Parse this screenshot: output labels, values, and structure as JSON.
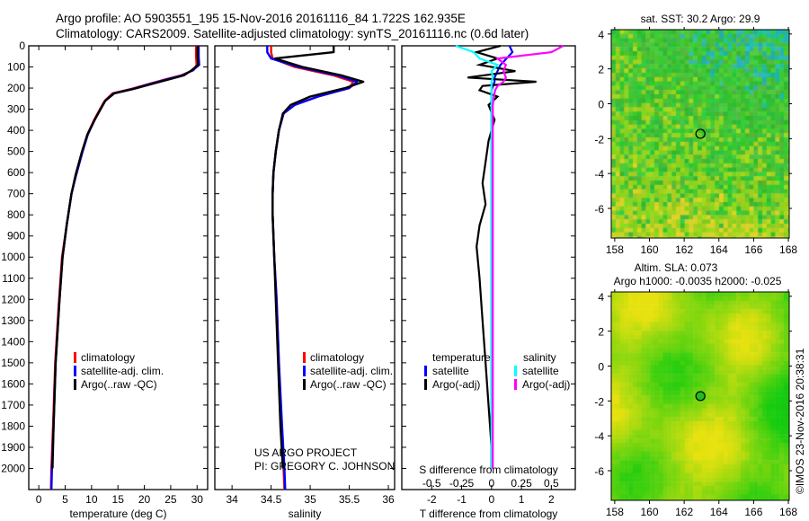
{
  "header": {
    "line1": "Argo profile: AO 5903551_195 15-Nov-2016 20161116_84 1.722S 162.935E",
    "line2": "Climatology: CARS2009. Satellite-adjusted climatology: synTS_20161116.nc (0.6d later)"
  },
  "credits": {
    "project": "US ARGO PROJECT",
    "pi": "PI: GREGORY C. JOHNSON",
    "imos": "©IMOS 23-Nov-2016 20:38:31"
  },
  "colors": {
    "climatology": "#ff0000",
    "satellite": "#0000ff",
    "argo": "#000000",
    "sal_satellite": "#00ffff",
    "sal_argo": "#ff00ff"
  },
  "chart_data": [
    {
      "type": "line",
      "id": "temperature",
      "xlabel": "temperature (deg C)",
      "ylabel": "",
      "xlim": [
        -1.9,
        32
      ],
      "ylim": [
        2100,
        0
      ],
      "xticks": [
        "0",
        "5",
        "10",
        "15",
        "20",
        "25",
        "30"
      ],
      "xtick_values": [
        0,
        5,
        10,
        15,
        20,
        25,
        30
      ],
      "yticks": [
        "0",
        "100",
        "200",
        "300",
        "400",
        "500",
        "600",
        "700",
        "800",
        "900",
        "1000",
        "1100",
        "1200",
        "1300",
        "1400",
        "1500",
        "1600",
        "1700",
        "1800",
        "1900",
        "2000"
      ],
      "ytick_values": [
        0,
        100,
        200,
        300,
        400,
        500,
        600,
        700,
        800,
        900,
        1000,
        1100,
        1200,
        1300,
        1400,
        1500,
        1600,
        1700,
        1800,
        1900,
        2000
      ],
      "depth": [
        0,
        50,
        90,
        115,
        140,
        157,
        180,
        204,
        225,
        260,
        300,
        350,
        420,
        500,
        610,
        700,
        845,
        1000,
        1215,
        1500,
        1800,
        2000,
        2100
      ],
      "legend": [
        "climatology",
        "satellite-adj. clim.",
        "Argo(..raw -QC)"
      ],
      "series": [
        {
          "name": "climatology",
          "color": "#ff0000",
          "values": [
            29.8,
            29.8,
            29.9,
            29.3,
            27.0,
            24.3,
            21.0,
            17.5,
            14.0,
            12.5,
            11.6,
            10.5,
            9.2,
            8.2,
            7.0,
            6.2,
            5.3,
            4.4,
            3.8,
            3.1,
            2.7,
            2.4,
            2.3
          ]
        },
        {
          "name": "satellite-adj. clim.",
          "color": "#0000ff",
          "values": [
            30.3,
            30.3,
            30.4,
            29.2,
            27.2,
            24.6,
            21.2,
            17.8,
            14.2,
            12.6,
            11.7,
            10.6,
            9.3,
            8.3,
            7.1,
            6.2,
            5.3,
            4.5,
            3.9,
            3.2,
            2.8,
            2.5,
            2.4
          ]
        },
        {
          "name": "Argo(..raw -QC)",
          "color": "#000000",
          "values": [
            30.1,
            30.1,
            30.2,
            29.0,
            27.5,
            25.0,
            21.5,
            18.0,
            14.3,
            12.6,
            11.7,
            10.6,
            9.2,
            8.2,
            7.0,
            6.2,
            5.3,
            4.5,
            3.9,
            3.2,
            2.8,
            2.6,
            null
          ]
        }
      ]
    },
    {
      "type": "line",
      "id": "salinity",
      "xlabel": "salinity",
      "xlim": [
        33.78,
        36.08
      ],
      "ylim": [
        2100,
        0
      ],
      "xticks": [
        "34",
        "34.5",
        "35",
        "35.5",
        "36"
      ],
      "xtick_values": [
        34,
        34.5,
        35,
        35.5,
        36
      ],
      "depth": [
        0,
        30,
        60,
        100,
        140,
        170,
        200,
        240,
        280,
        320,
        400,
        500,
        600,
        700,
        800,
        1000,
        1200,
        1500,
        1800,
        2000,
        2100
      ],
      "legend": [
        "climatology",
        "satellite-adj. clim.",
        "Argo(..raw -QC)"
      ],
      "series": [
        {
          "name": "climatology",
          "color": "#ff0000",
          "values": [
            34.5,
            34.5,
            34.52,
            34.8,
            35.3,
            35.55,
            35.5,
            35.1,
            34.8,
            34.66,
            34.6,
            34.56,
            34.53,
            34.52,
            34.52,
            34.54,
            34.57,
            34.6,
            34.63,
            34.66,
            34.67
          ]
        },
        {
          "name": "satellite-adj. clim.",
          "color": "#0000ff",
          "values": [
            34.45,
            34.45,
            34.5,
            34.85,
            35.35,
            35.6,
            35.5,
            35.1,
            34.8,
            34.66,
            34.6,
            34.56,
            34.53,
            34.52,
            34.52,
            34.54,
            34.57,
            34.6,
            34.64,
            34.67,
            34.68
          ]
        },
        {
          "name": "Argo(..raw -QC)",
          "color": "#000000",
          "values": [
            35.3,
            35.3,
            34.55,
            34.9,
            35.4,
            35.68,
            35.45,
            35.0,
            34.75,
            34.65,
            34.6,
            34.56,
            34.53,
            34.52,
            34.52,
            34.54,
            34.56,
            34.59,
            34.62,
            34.65,
            null
          ]
        }
      ]
    },
    {
      "type": "line",
      "id": "difference",
      "xlabel": "T difference from climatology",
      "x2label": "S difference from climatology",
      "xlim": [
        -3.0,
        2.8
      ],
      "x2lim": [
        -0.75,
        0.7
      ],
      "ylim": [
        2100,
        0
      ],
      "xticks": [
        "-2",
        "-1",
        "0",
        "1",
        "2"
      ],
      "xtick_values": [
        -2,
        -1,
        0,
        1,
        2
      ],
      "x2ticks": [
        "-0.5",
        "-0.25",
        "0",
        "0.25",
        "0.5"
      ],
      "x2tick_values": [
        -0.5,
        -0.25,
        0,
        0.25,
        0.5
      ],
      "depth": [
        0,
        30,
        60,
        90,
        120,
        150,
        170,
        190,
        210,
        240,
        280,
        350,
        450,
        550,
        650,
        750,
        850,
        950,
        1100,
        1300,
        1500,
        1700,
        1900,
        2000
      ],
      "legend_headers": [
        "temperature",
        "salinity"
      ],
      "legend": [
        "satellite",
        "Argo(-adj)",
        "satellite",
        "Argo(-adj)"
      ],
      "series": [
        {
          "name": "T satellite",
          "axis": "T",
          "color": "#0000ff",
          "values": [
            0.6,
            0.7,
            0.5,
            0.3,
            0.2,
            0.1,
            0.1,
            0.05,
            0,
            0,
            0,
            0,
            0,
            0,
            0,
            0,
            0,
            0,
            0,
            0,
            0,
            0,
            0,
            0
          ]
        },
        {
          "name": "T Argo(-adj)",
          "axis": "T",
          "color": "#000000",
          "values": [
            0.3,
            -0.5,
            0.2,
            -0.4,
            0.8,
            -0.8,
            1.5,
            -0.3,
            -0.4,
            0.2,
            -0.1,
            0.1,
            -0.1,
            -0.2,
            -0.3,
            -0.2,
            -0.4,
            -0.5,
            -0.4,
            -0.3,
            -0.2,
            -0.1,
            0,
            0
          ]
        },
        {
          "name": "S satellite",
          "axis": "S",
          "color": "#00ffff",
          "values": [
            -0.3,
            -0.15,
            -0.1,
            0.05,
            0,
            0.01,
            0,
            0,
            0,
            0,
            0,
            0,
            0,
            0,
            0,
            0,
            0,
            0,
            0,
            0,
            0,
            0,
            0,
            0
          ]
        },
        {
          "name": "S Argo(-adj)",
          "axis": "S",
          "color": "#ff00ff",
          "values": [
            0.6,
            0.5,
            0.05,
            0.12,
            0.1,
            0.12,
            0.1,
            0.05,
            0.03,
            0.02,
            0.01,
            0.01,
            0.01,
            0.01,
            0.01,
            0.01,
            0.01,
            0.01,
            0.01,
            0.01,
            0.01,
            0.01,
            0.01,
            0.01
          ]
        }
      ]
    },
    {
      "type": "heatmap",
      "id": "sst_map",
      "title": "sat. SST: 30.2 Argo: 29.9",
      "xlim": [
        157.8,
        168.05
      ],
      "ylim": [
        -7.7,
        4.25
      ],
      "xticks": [
        "158",
        "160",
        "162",
        "164",
        "166",
        "168"
      ],
      "xtick_values": [
        158,
        160,
        162,
        164,
        166,
        168
      ],
      "yticks": [
        "4",
        "2",
        "0",
        "-2",
        "-4",
        "-6"
      ],
      "ytick_values": [
        4,
        2,
        0,
        -2,
        -4,
        -6
      ],
      "marker": {
        "lon": 162.935,
        "lat": -1.722
      }
    },
    {
      "type": "heatmap",
      "id": "sla_map",
      "title": "Altim. SLA: 0.073",
      "subtitle": "Argo h1000: -0.0035 h2000: -0.025",
      "xlim": [
        157.8,
        168.05
      ],
      "ylim": [
        -7.7,
        4.25
      ],
      "xticks": [
        "158",
        "160",
        "162",
        "164",
        "166",
        "168"
      ],
      "xtick_values": [
        158,
        160,
        162,
        164,
        166,
        168
      ],
      "yticks": [
        "4",
        "2",
        "0",
        "-2",
        "-4",
        "-6"
      ],
      "ytick_values": [
        4,
        2,
        0,
        -2,
        -4,
        -6
      ],
      "marker": {
        "lon": 162.935,
        "lat": -1.722
      }
    }
  ]
}
